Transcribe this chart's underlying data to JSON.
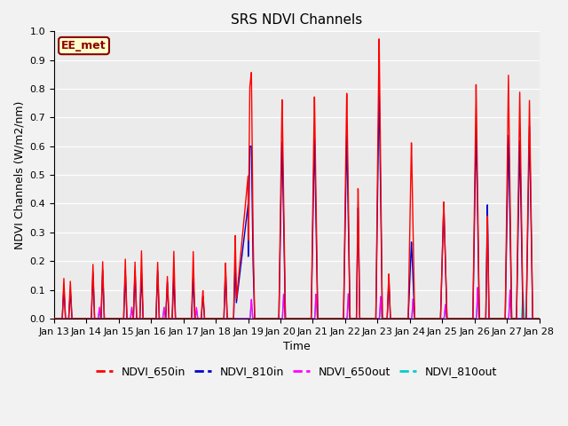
{
  "title": "SRS NDVI Channels",
  "xlabel": "Time",
  "ylabel": "NDVI Channels (W/m2/nm)",
  "ylim": [
    0.0,
    1.0
  ],
  "yticks": [
    0.0,
    0.1,
    0.2,
    0.3,
    0.4,
    0.5,
    0.6,
    0.7,
    0.8,
    0.9,
    1.0
  ],
  "xtick_labels": [
    "Jan 13",
    "Jan 14",
    "Jan 15",
    "Jan 16",
    "Jan 17",
    "Jan 18",
    "Jan 19",
    "Jan 20",
    "Jan 21",
    "Jan 22",
    "Jan 23",
    "Jan 24",
    "Jan 25",
    "Jan 26",
    "Jan 27",
    "Jan 28"
  ],
  "annotation_text": "EE_met",
  "annotation_color": "#8B0000",
  "annotation_bg": "#FFFFCC",
  "colors": {
    "NDVI_650in": "#FF0000",
    "NDVI_810in": "#0000CC",
    "NDVI_650out": "#FF00FF",
    "NDVI_810out": "#00CCCC"
  },
  "plot_bg_color": "#EBEBEB",
  "fig_bg_color": "#F2F2F2",
  "title_fontsize": 11,
  "axis_fontsize": 9,
  "tick_fontsize": 8
}
